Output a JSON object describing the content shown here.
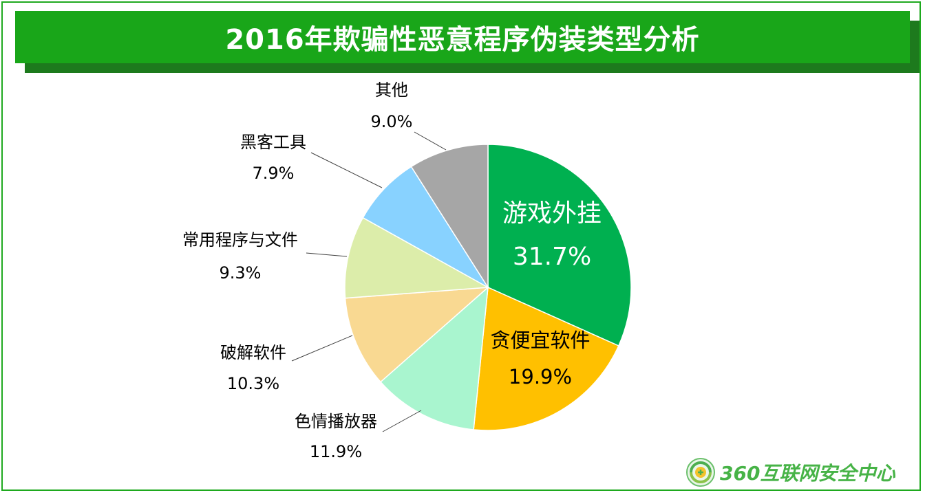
{
  "title": "2016年欺骗性恶意程序伪装类型分析",
  "chart_data": {
    "type": "pie",
    "title": "2016年欺骗性恶意程序伪装类型分析",
    "slices": [
      {
        "label": "游戏外挂",
        "value": 31.7,
        "value_label": "31.7%",
        "color": "#00b050"
      },
      {
        "label": "贪便宜软件",
        "value": 19.9,
        "value_label": "19.9%",
        "color": "#ffc000"
      },
      {
        "label": "色情播放器",
        "value": 11.9,
        "value_label": "11.9%",
        "color": "#a9f5cf"
      },
      {
        "label": "破解软件",
        "value": 10.3,
        "value_label": "10.3%",
        "color": "#f9d992"
      },
      {
        "label": "常用程序与文件",
        "value": 9.3,
        "value_label": "9.3%",
        "color": "#dcedaa"
      },
      {
        "label": "黑客工具",
        "value": 7.9,
        "value_label": "7.9%",
        "color": "#88d2ff"
      },
      {
        "label": "其他",
        "value": 9.0,
        "value_label": "9.0%",
        "color": "#a6a6a6"
      }
    ],
    "start": "12 o'clock",
    "direction": "clockwise"
  },
  "logo": {
    "text": "360互联网安全中心",
    "icon": "360-logo-icon"
  }
}
